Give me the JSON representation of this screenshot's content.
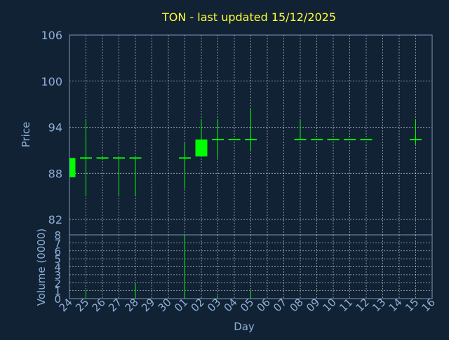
{
  "colors": {
    "background": "#112235",
    "title": "#ffff33",
    "axis_text": "#8fb0d6",
    "candle": "#00ff00",
    "grid": "#ffffff",
    "frame": "#7a96b8"
  },
  "chart_data": [
    {
      "type": "candlestick",
      "title": "TON - last updated 15/12/2025",
      "ylabel": "Price",
      "ylim": [
        80,
        106
      ],
      "yticks": [
        82,
        88,
        94,
        100,
        106
      ],
      "grid": true,
      "x": [
        "24",
        "25",
        "26",
        "27",
        "28",
        "29",
        "30",
        "01",
        "02",
        "03",
        "04",
        "05",
        "06",
        "07",
        "08",
        "09",
        "10",
        "11",
        "12",
        "13",
        "14",
        "15",
        "16"
      ],
      "candles": [
        {
          "x": "24",
          "open": 87.5,
          "close": 90.0,
          "high": 90.0,
          "low": 87.5
        },
        {
          "x": "25",
          "open": 90.0,
          "close": 90.0,
          "high": 95.0,
          "low": 85.0
        },
        {
          "x": "26",
          "open": 90.0,
          "close": 90.0,
          "high": 90.0,
          "low": 90.0
        },
        {
          "x": "27",
          "open": 90.0,
          "close": 90.0,
          "high": 90.0,
          "low": 85.0
        },
        {
          "x": "28",
          "open": 90.0,
          "close": 90.0,
          "high": 90.0,
          "low": 85.0
        },
        {
          "x": "01",
          "open": 90.0,
          "close": 90.0,
          "high": 92.0,
          "low": 86.0
        },
        {
          "x": "02",
          "open": 90.2,
          "close": 92.4,
          "high": 95.0,
          "low": 90.2
        },
        {
          "x": "03",
          "open": 92.4,
          "close": 92.4,
          "high": 95.0,
          "low": 90.0
        },
        {
          "x": "04",
          "open": 92.4,
          "close": 92.4,
          "high": 92.4,
          "low": 92.4
        },
        {
          "x": "05",
          "open": 92.4,
          "close": 92.4,
          "high": 96.5,
          "low": 91.0
        },
        {
          "x": "08",
          "open": 92.4,
          "close": 92.4,
          "high": 95.0,
          "low": 92.4
        },
        {
          "x": "09",
          "open": 92.4,
          "close": 92.4,
          "high": 92.4,
          "low": 92.4
        },
        {
          "x": "10",
          "open": 92.4,
          "close": 92.4,
          "high": 92.4,
          "low": 92.4
        },
        {
          "x": "11",
          "open": 92.4,
          "close": 92.4,
          "high": 92.4,
          "low": 92.4
        },
        {
          "x": "12",
          "open": 92.4,
          "close": 92.4,
          "high": 92.4,
          "low": 92.4
        },
        {
          "x": "15",
          "open": 92.4,
          "close": 92.4,
          "high": 95.0,
          "low": 91.8
        }
      ]
    },
    {
      "type": "bar",
      "ylabel": "Volume (0000)",
      "xlabel": "Day",
      "ylim": [
        0,
        8
      ],
      "yticks": [
        0,
        1,
        2,
        3,
        4,
        5,
        6,
        7,
        8
      ],
      "grid": true,
      "categories": [
        "24",
        "25",
        "26",
        "27",
        "28",
        "29",
        "30",
        "01",
        "02",
        "03",
        "04",
        "05",
        "06",
        "07",
        "08",
        "09",
        "10",
        "11",
        "12",
        "13",
        "14",
        "15",
        "16"
      ],
      "values": [
        0,
        1.0,
        0,
        0.1,
        2.0,
        0,
        0,
        8.0,
        0.1,
        0.4,
        0,
        1.0,
        0,
        0,
        0,
        0,
        0,
        0,
        0,
        0,
        0,
        0,
        0
      ]
    }
  ]
}
